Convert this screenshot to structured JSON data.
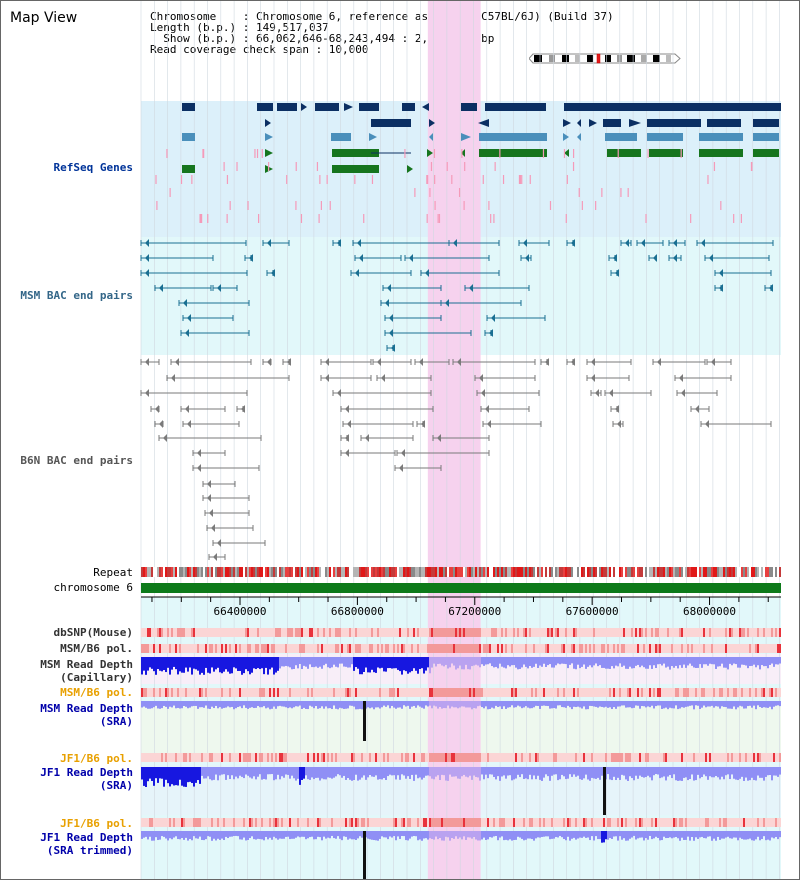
{
  "title": "Map View",
  "info": {
    "line1": "Chromosome    : Chromosome 6, reference assembly (C57BL/6J) (Build 37)",
    "line2": "Length (b.p.) : 149,517,037",
    "line3": "  Show (b.p.) : 66,062,646-68,243,494 : 2,180,849 bp",
    "line4": "Read coverage check span : 10,000"
  },
  "tracks": {
    "refseq": "RefSeq Genes",
    "msm_bac": "MSM BAC end pairs",
    "b6n_bac": "B6N BAC end pairs",
    "repeat": "Repeat",
    "chromosome": "chromosome 6",
    "dbsnp": "dbSNP(Mouse)",
    "msm_pol_1": "MSM/B6 pol.",
    "msm_depth_cap_1": "MSM Read Depth",
    "msm_depth_cap_2": "(Capillary)",
    "msm_pol_2": "MSM/B6 pol.",
    "msm_depth_sra_1": "MSM Read Depth",
    "msm_depth_sra_2": "(SRA)",
    "jf1_pol_1": "JF1/B6 pol.",
    "jf1_depth_sra_1": "JF1 Read Depth",
    "jf1_depth_sra_2": "(SRA)",
    "jf1_pol_2": "JF1/B6 pol.",
    "jf1_depth_trim_1": "JF1 Read Depth",
    "jf1_depth_trim_2": "(SRA trimmed)"
  },
  "axis": {
    "range": [
      66062646,
      68243494
    ],
    "ticks": [
      66400000,
      66800000,
      67200000,
      67600000,
      68000000
    ]
  },
  "highlight": {
    "start": 67040000,
    "end": 67220000
  },
  "colors": {
    "refseq_bg": "#dcf0fa",
    "bac_bg": "#e2f8fa",
    "highlight": "#f6d2ee",
    "gene_dark": "#0b2f63",
    "gene_mid": "#4a8fbb",
    "gene_green": "#16751e",
    "pink_tick": "#f59ab9",
    "msm_feature": "#1a6f92",
    "b6n_feature": "#7a7a7a",
    "chrom": "#0d7a1a",
    "depth_dark": "#1717e0",
    "depth_light": "#8f8ff5",
    "pol_red": "#e8333c",
    "pol_light": "#fbd5d5"
  }
}
